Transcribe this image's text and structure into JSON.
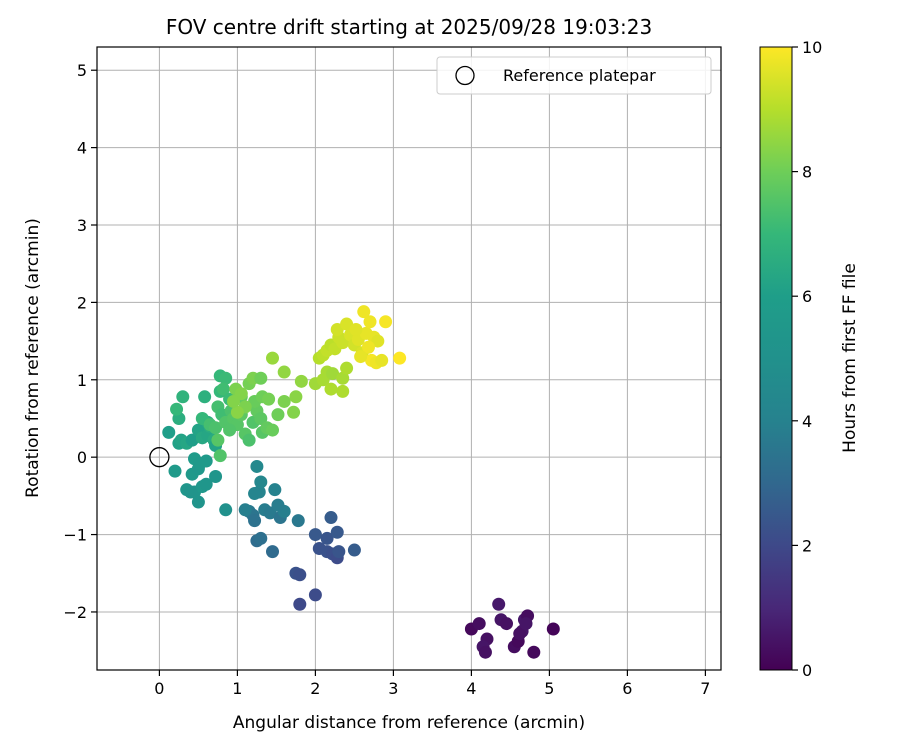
{
  "chart_data": {
    "type": "scatter",
    "title": "FOV centre drift starting at 2025/09/28 19:03:23",
    "xlabel": "Angular distance from reference (arcmin)",
    "ylabel": "Rotation from reference (arcmin)",
    "xlim": [
      -0.8,
      7.2
    ],
    "ylim": [
      -2.75,
      5.3
    ],
    "xticks": [
      0,
      1,
      2,
      3,
      4,
      5,
      6,
      7
    ],
    "yticks": [
      -2,
      -1,
      0,
      1,
      2,
      3,
      4,
      5
    ],
    "xtick_labels": [
      "0",
      "1",
      "2",
      "3",
      "4",
      "5",
      "6",
      "7"
    ],
    "ytick_labels": [
      "−2",
      "−1",
      "0",
      "1",
      "2",
      "3",
      "4",
      "5"
    ],
    "grid": true,
    "legend": {
      "position": "top-right",
      "label": "Reference platepar"
    },
    "reference_point": {
      "x": 0,
      "y": 0
    },
    "colorbar": {
      "label": "Hours from first FF file",
      "min": 0,
      "max": 10,
      "ticks": [
        0,
        2,
        4,
        6,
        8,
        10
      ],
      "tick_labels": [
        "0",
        "2",
        "4",
        "6",
        "8",
        "10"
      ],
      "colormap": "viridis"
    },
    "points": [
      {
        "x": 4.0,
        "y": -2.22,
        "h": 0.2
      },
      {
        "x": 4.1,
        "y": -2.15,
        "h": 0.3
      },
      {
        "x": 4.2,
        "y": -2.35,
        "h": 0.4
      },
      {
        "x": 4.15,
        "y": -2.45,
        "h": 0.5
      },
      {
        "x": 4.18,
        "y": -2.52,
        "h": 0.4
      },
      {
        "x": 4.35,
        "y": -1.9,
        "h": 0.6
      },
      {
        "x": 4.38,
        "y": -2.1,
        "h": 0.5
      },
      {
        "x": 4.45,
        "y": -2.15,
        "h": 0.4
      },
      {
        "x": 4.55,
        "y": -2.45,
        "h": 0.3
      },
      {
        "x": 4.6,
        "y": -2.38,
        "h": 0.2
      },
      {
        "x": 4.65,
        "y": -2.25,
        "h": 0.5
      },
      {
        "x": 4.68,
        "y": -2.1,
        "h": 0.6
      },
      {
        "x": 4.72,
        "y": -2.05,
        "h": 0.3
      },
      {
        "x": 4.62,
        "y": -2.28,
        "h": 0.4
      },
      {
        "x": 4.8,
        "y": -2.52,
        "h": 0.2
      },
      {
        "x": 5.05,
        "y": -2.22,
        "h": 0.1
      },
      {
        "x": 4.7,
        "y": -2.15,
        "h": 0.5
      },
      {
        "x": 1.8,
        "y": -1.9,
        "h": 2.0
      },
      {
        "x": 2.0,
        "y": -1.78,
        "h": 2.1
      },
      {
        "x": 1.75,
        "y": -1.5,
        "h": 2.3
      },
      {
        "x": 1.8,
        "y": -1.52,
        "h": 2.2
      },
      {
        "x": 2.0,
        "y": -1.0,
        "h": 2.5
      },
      {
        "x": 2.15,
        "y": -1.05,
        "h": 2.4
      },
      {
        "x": 2.2,
        "y": -0.78,
        "h": 2.6
      },
      {
        "x": 2.15,
        "y": -1.22,
        "h": 2.3
      },
      {
        "x": 2.22,
        "y": -1.25,
        "h": 2.2
      },
      {
        "x": 2.28,
        "y": -1.3,
        "h": 2.1
      },
      {
        "x": 2.3,
        "y": -1.22,
        "h": 2.4
      },
      {
        "x": 2.28,
        "y": -0.97,
        "h": 2.5
      },
      {
        "x": 2.5,
        "y": -1.2,
        "h": 2.6
      },
      {
        "x": 2.05,
        "y": -1.18,
        "h": 2.3
      },
      {
        "x": 1.25,
        "y": -1.08,
        "h": 3.2
      },
      {
        "x": 1.3,
        "y": -1.05,
        "h": 3.3
      },
      {
        "x": 1.45,
        "y": -1.22,
        "h": 3.1
      },
      {
        "x": 1.15,
        "y": -0.7,
        "h": 3.6
      },
      {
        "x": 1.2,
        "y": -0.75,
        "h": 3.5
      },
      {
        "x": 1.22,
        "y": -0.82,
        "h": 3.4
      },
      {
        "x": 1.35,
        "y": -0.68,
        "h": 3.8
      },
      {
        "x": 1.42,
        "y": -0.72,
        "h": 3.7
      },
      {
        "x": 1.55,
        "y": -0.78,
        "h": 3.5
      },
      {
        "x": 1.6,
        "y": -0.7,
        "h": 3.9
      },
      {
        "x": 1.78,
        "y": -0.82,
        "h": 3.6
      },
      {
        "x": 1.28,
        "y": -0.45,
        "h": 4.1
      },
      {
        "x": 1.22,
        "y": -0.47,
        "h": 4.2
      },
      {
        "x": 1.48,
        "y": -0.42,
        "h": 4.0
      },
      {
        "x": 1.3,
        "y": -0.32,
        "h": 4.3
      },
      {
        "x": 1.25,
        "y": -0.12,
        "h": 4.4
      },
      {
        "x": 1.1,
        "y": -0.68,
        "h": 3.9
      },
      {
        "x": 1.52,
        "y": -0.62,
        "h": 3.8
      },
      {
        "x": 0.85,
        "y": -0.68,
        "h": 5.0
      },
      {
        "x": 0.5,
        "y": -0.58,
        "h": 5.2
      },
      {
        "x": 0.45,
        "y": -0.45,
        "h": 5.3
      },
      {
        "x": 0.35,
        "y": -0.42,
        "h": 5.4
      },
      {
        "x": 0.55,
        "y": -0.38,
        "h": 5.5
      },
      {
        "x": 0.6,
        "y": -0.35,
        "h": 5.4
      },
      {
        "x": 0.72,
        "y": -0.25,
        "h": 5.3
      },
      {
        "x": 0.42,
        "y": -0.22,
        "h": 5.6
      },
      {
        "x": 0.5,
        "y": -0.15,
        "h": 5.5
      },
      {
        "x": 0.2,
        "y": -0.18,
        "h": 5.7
      },
      {
        "x": 0.45,
        "y": -0.02,
        "h": 5.8
      },
      {
        "x": 0.52,
        "y": -0.08,
        "h": 5.6
      },
      {
        "x": 0.6,
        "y": -0.05,
        "h": 5.7
      },
      {
        "x": 0.4,
        "y": -0.45,
        "h": 5.2
      },
      {
        "x": 0.12,
        "y": 0.32,
        "h": 6.0
      },
      {
        "x": 0.25,
        "y": 0.18,
        "h": 6.1
      },
      {
        "x": 0.28,
        "y": 0.22,
        "h": 6.2
      },
      {
        "x": 0.35,
        "y": 0.18,
        "h": 6.3
      },
      {
        "x": 0.42,
        "y": 0.22,
        "h": 6.0
      },
      {
        "x": 0.5,
        "y": 0.35,
        "h": 6.2
      },
      {
        "x": 0.55,
        "y": 0.25,
        "h": 6.4
      },
      {
        "x": 0.62,
        "y": 0.28,
        "h": 6.3
      },
      {
        "x": 0.7,
        "y": 0.22,
        "h": 6.5
      },
      {
        "x": 0.72,
        "y": 0.15,
        "h": 6.2
      },
      {
        "x": 0.25,
        "y": 0.5,
        "h": 6.6
      },
      {
        "x": 0.3,
        "y": 0.78,
        "h": 6.8
      },
      {
        "x": 0.58,
        "y": 0.78,
        "h": 6.7
      },
      {
        "x": 0.62,
        "y": 0.45,
        "h": 6.5
      },
      {
        "x": 0.65,
        "y": 0.4,
        "h": 6.6
      },
      {
        "x": 0.78,
        "y": 1.05,
        "h": 7.0
      },
      {
        "x": 0.85,
        "y": 1.02,
        "h": 7.1
      },
      {
        "x": 0.78,
        "y": 0.85,
        "h": 7.0
      },
      {
        "x": 0.82,
        "y": 0.88,
        "h": 7.2
      },
      {
        "x": 0.22,
        "y": 0.62,
        "h": 7.0
      },
      {
        "x": 0.9,
        "y": 0.75,
        "h": 7.1
      },
      {
        "x": 0.75,
        "y": 0.65,
        "h": 7.3
      },
      {
        "x": 0.8,
        "y": 0.55,
        "h": 7.2
      },
      {
        "x": 0.92,
        "y": 0.6,
        "h": 7.4
      },
      {
        "x": 0.55,
        "y": 0.5,
        "h": 7.0
      },
      {
        "x": 0.65,
        "y": 0.42,
        "h": 7.3
      },
      {
        "x": 0.72,
        "y": 0.38,
        "h": 7.4
      },
      {
        "x": 0.85,
        "y": 0.45,
        "h": 7.5
      },
      {
        "x": 0.95,
        "y": 0.5,
        "h": 7.6
      },
      {
        "x": 1.0,
        "y": 0.42,
        "h": 7.6
      },
      {
        "x": 1.05,
        "y": 0.55,
        "h": 7.7
      },
      {
        "x": 0.9,
        "y": 0.35,
        "h": 7.5
      },
      {
        "x": 1.1,
        "y": 0.3,
        "h": 7.6
      },
      {
        "x": 1.15,
        "y": 0.22,
        "h": 7.4
      },
      {
        "x": 0.78,
        "y": 0.02,
        "h": 7.5
      },
      {
        "x": 0.75,
        "y": 0.22,
        "h": 7.6
      },
      {
        "x": 1.2,
        "y": 0.45,
        "h": 7.5
      },
      {
        "x": 1.25,
        "y": 0.6,
        "h": 7.8
      },
      {
        "x": 1.3,
        "y": 0.5,
        "h": 7.7
      },
      {
        "x": 1.32,
        "y": 0.32,
        "h": 7.6
      },
      {
        "x": 1.38,
        "y": 0.38,
        "h": 7.8
      },
      {
        "x": 1.45,
        "y": 0.35,
        "h": 7.9
      },
      {
        "x": 1.52,
        "y": 0.55,
        "h": 8.0
      },
      {
        "x": 1.22,
        "y": 0.72,
        "h": 7.9
      },
      {
        "x": 1.32,
        "y": 0.78,
        "h": 8.0
      },
      {
        "x": 1.4,
        "y": 0.75,
        "h": 8.1
      },
      {
        "x": 1.05,
        "y": 0.78,
        "h": 7.8
      },
      {
        "x": 1.15,
        "y": 0.95,
        "h": 8.1
      },
      {
        "x": 1.2,
        "y": 1.02,
        "h": 8.2
      },
      {
        "x": 1.3,
        "y": 1.02,
        "h": 8.0
      },
      {
        "x": 0.98,
        "y": 0.88,
        "h": 8.2
      },
      {
        "x": 1.05,
        "y": 0.82,
        "h": 8.3
      },
      {
        "x": 1.1,
        "y": 0.65,
        "h": 8.2
      },
      {
        "x": 1.0,
        "y": 0.58,
        "h": 8.4
      },
      {
        "x": 0.95,
        "y": 0.72,
        "h": 8.3
      },
      {
        "x": 1.6,
        "y": 0.72,
        "h": 8.2
      },
      {
        "x": 1.72,
        "y": 0.58,
        "h": 8.3
      },
      {
        "x": 1.75,
        "y": 0.78,
        "h": 8.4
      },
      {
        "x": 1.82,
        "y": 0.98,
        "h": 8.5
      },
      {
        "x": 1.6,
        "y": 1.1,
        "h": 8.5
      },
      {
        "x": 1.45,
        "y": 1.28,
        "h": 8.6
      },
      {
        "x": 2.0,
        "y": 0.95,
        "h": 8.7
      },
      {
        "x": 2.1,
        "y": 1.0,
        "h": 8.8
      },
      {
        "x": 2.2,
        "y": 0.88,
        "h": 8.9
      },
      {
        "x": 2.35,
        "y": 0.85,
        "h": 8.9
      },
      {
        "x": 2.15,
        "y": 1.1,
        "h": 8.8
      },
      {
        "x": 2.22,
        "y": 1.08,
        "h": 8.7
      },
      {
        "x": 2.35,
        "y": 1.02,
        "h": 8.8
      },
      {
        "x": 2.4,
        "y": 1.15,
        "h": 8.9
      },
      {
        "x": 2.05,
        "y": 1.28,
        "h": 9.0
      },
      {
        "x": 2.1,
        "y": 1.32,
        "h": 9.1
      },
      {
        "x": 2.15,
        "y": 1.38,
        "h": 9.2
      },
      {
        "x": 2.2,
        "y": 1.45,
        "h": 9.1
      },
      {
        "x": 2.25,
        "y": 1.4,
        "h": 9.2
      },
      {
        "x": 2.3,
        "y": 1.55,
        "h": 9.3
      },
      {
        "x": 2.35,
        "y": 1.48,
        "h": 9.3
      },
      {
        "x": 2.28,
        "y": 1.65,
        "h": 9.4
      },
      {
        "x": 2.4,
        "y": 1.72,
        "h": 9.5
      },
      {
        "x": 2.45,
        "y": 1.58,
        "h": 9.5
      },
      {
        "x": 2.5,
        "y": 1.45,
        "h": 9.4
      },
      {
        "x": 2.55,
        "y": 1.52,
        "h": 9.6
      },
      {
        "x": 2.6,
        "y": 1.35,
        "h": 9.5
      },
      {
        "x": 2.65,
        "y": 1.6,
        "h": 9.7
      },
      {
        "x": 2.62,
        "y": 1.88,
        "h": 9.8
      },
      {
        "x": 2.7,
        "y": 1.75,
        "h": 9.8
      },
      {
        "x": 2.75,
        "y": 1.55,
        "h": 9.7
      },
      {
        "x": 2.8,
        "y": 1.5,
        "h": 9.6
      },
      {
        "x": 2.68,
        "y": 1.42,
        "h": 9.8
      },
      {
        "x": 2.72,
        "y": 1.25,
        "h": 9.9
      },
      {
        "x": 2.78,
        "y": 1.22,
        "h": 9.8
      },
      {
        "x": 2.85,
        "y": 1.25,
        "h": 9.7
      },
      {
        "x": 2.9,
        "y": 1.75,
        "h": 9.9
      },
      {
        "x": 3.08,
        "y": 1.28,
        "h": 10.0
      },
      {
        "x": 2.52,
        "y": 1.65,
        "h": 9.6
      },
      {
        "x": 2.58,
        "y": 1.3,
        "h": 9.7
      }
    ]
  }
}
